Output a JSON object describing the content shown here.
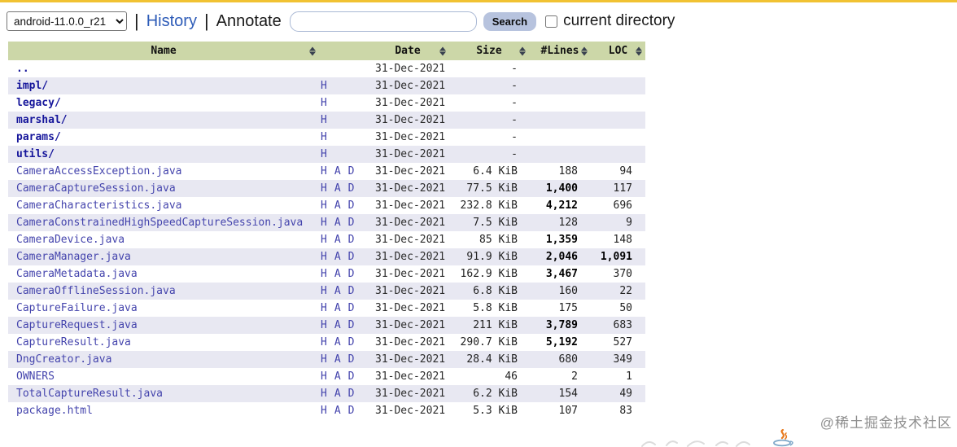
{
  "colors": {
    "top_line": "#f1c232",
    "table_header_bg": "#ccd7a8",
    "row_stripe_bg": "#e8e8f2",
    "link_blue": "#2e5cb8",
    "name_link_dir": "#16169b",
    "name_link_file": "#4545ad",
    "search_button_bg": "#b7c3de"
  },
  "toolbar": {
    "version_select": {
      "value": "android-11.0.0_r21"
    },
    "separator": "|",
    "history_label": "History",
    "annotate_label": "Annotate",
    "search_input": {
      "value": "",
      "placeholder": ""
    },
    "search_button_label": "Search",
    "current_directory": {
      "label": "current directory",
      "checked": false
    }
  },
  "table": {
    "headers": {
      "name_label": "Name",
      "links_label": "",
      "date_label": "Date",
      "size_label": "Size",
      "lines_label": "#Lines",
      "loc_label": "LOC"
    },
    "rows": [
      {
        "name": "..",
        "type": "parent",
        "links": [],
        "date": "31-Dec-2021",
        "size": "-",
        "lines": "",
        "loc": "",
        "lines_bold": false,
        "loc_bold": false
      },
      {
        "name": "impl/",
        "type": "dir",
        "links": [
          "H"
        ],
        "date": "31-Dec-2021",
        "size": "-",
        "lines": "",
        "loc": "",
        "lines_bold": false,
        "loc_bold": false
      },
      {
        "name": "legacy/",
        "type": "dir",
        "links": [
          "H"
        ],
        "date": "31-Dec-2021",
        "size": "-",
        "lines": "",
        "loc": "",
        "lines_bold": false,
        "loc_bold": false
      },
      {
        "name": "marshal/",
        "type": "dir",
        "links": [
          "H"
        ],
        "date": "31-Dec-2021",
        "size": "-",
        "lines": "",
        "loc": "",
        "lines_bold": false,
        "loc_bold": false
      },
      {
        "name": "params/",
        "type": "dir",
        "links": [
          "H"
        ],
        "date": "31-Dec-2021",
        "size": "-",
        "lines": "",
        "loc": "",
        "lines_bold": false,
        "loc_bold": false
      },
      {
        "name": "utils/",
        "type": "dir",
        "links": [
          "H"
        ],
        "date": "31-Dec-2021",
        "size": "-",
        "lines": "",
        "loc": "",
        "lines_bold": false,
        "loc_bold": false
      },
      {
        "name": "CameraAccessException.java",
        "type": "file",
        "links": [
          "H",
          "A",
          "D"
        ],
        "date": "31-Dec-2021",
        "size": "6.4 KiB",
        "lines": "188",
        "loc": "94",
        "lines_bold": false,
        "loc_bold": false
      },
      {
        "name": "CameraCaptureSession.java",
        "type": "file",
        "links": [
          "H",
          "A",
          "D"
        ],
        "date": "31-Dec-2021",
        "size": "77.5 KiB",
        "lines": "1,400",
        "loc": "117",
        "lines_bold": true,
        "loc_bold": false
      },
      {
        "name": "CameraCharacteristics.java",
        "type": "file",
        "links": [
          "H",
          "A",
          "D"
        ],
        "date": "31-Dec-2021",
        "size": "232.8 KiB",
        "lines": "4,212",
        "loc": "696",
        "lines_bold": true,
        "loc_bold": false
      },
      {
        "name": "CameraConstrainedHighSpeedCaptureSession.java",
        "type": "file",
        "links": [
          "H",
          "A",
          "D"
        ],
        "date": "31-Dec-2021",
        "size": "7.5 KiB",
        "lines": "128",
        "loc": "9",
        "lines_bold": false,
        "loc_bold": false
      },
      {
        "name": "CameraDevice.java",
        "type": "file",
        "links": [
          "H",
          "A",
          "D"
        ],
        "date": "31-Dec-2021",
        "size": "85 KiB",
        "lines": "1,359",
        "loc": "148",
        "lines_bold": true,
        "loc_bold": false
      },
      {
        "name": "CameraManager.java",
        "type": "file",
        "links": [
          "H",
          "A",
          "D"
        ],
        "date": "31-Dec-2021",
        "size": "91.9 KiB",
        "lines": "2,046",
        "loc": "1,091",
        "lines_bold": true,
        "loc_bold": true
      },
      {
        "name": "CameraMetadata.java",
        "type": "file",
        "links": [
          "H",
          "A",
          "D"
        ],
        "date": "31-Dec-2021",
        "size": "162.9 KiB",
        "lines": "3,467",
        "loc": "370",
        "lines_bold": true,
        "loc_bold": false
      },
      {
        "name": "CameraOfflineSession.java",
        "type": "file",
        "links": [
          "H",
          "A",
          "D"
        ],
        "date": "31-Dec-2021",
        "size": "6.8 KiB",
        "lines": "160",
        "loc": "22",
        "lines_bold": false,
        "loc_bold": false
      },
      {
        "name": "CaptureFailure.java",
        "type": "file",
        "links": [
          "H",
          "A",
          "D"
        ],
        "date": "31-Dec-2021",
        "size": "5.8 KiB",
        "lines": "175",
        "loc": "50",
        "lines_bold": false,
        "loc_bold": false
      },
      {
        "name": "CaptureRequest.java",
        "type": "file",
        "links": [
          "H",
          "A",
          "D"
        ],
        "date": "31-Dec-2021",
        "size": "211 KiB",
        "lines": "3,789",
        "loc": "683",
        "lines_bold": true,
        "loc_bold": false
      },
      {
        "name": "CaptureResult.java",
        "type": "file",
        "links": [
          "H",
          "A",
          "D"
        ],
        "date": "31-Dec-2021",
        "size": "290.7 KiB",
        "lines": "5,192",
        "loc": "527",
        "lines_bold": true,
        "loc_bold": false
      },
      {
        "name": "DngCreator.java",
        "type": "file",
        "links": [
          "H",
          "A",
          "D"
        ],
        "date": "31-Dec-2021",
        "size": "28.4 KiB",
        "lines": "680",
        "loc": "349",
        "lines_bold": false,
        "loc_bold": false
      },
      {
        "name": "OWNERS",
        "type": "file",
        "links": [
          "H",
          "A",
          "D"
        ],
        "date": "31-Dec-2021",
        "size": "46",
        "lines": "2",
        "loc": "1",
        "lines_bold": false,
        "loc_bold": false
      },
      {
        "name": "TotalCaptureResult.java",
        "type": "file",
        "links": [
          "H",
          "A",
          "D"
        ],
        "date": "31-Dec-2021",
        "size": "6.2 KiB",
        "lines": "154",
        "loc": "49",
        "lines_bold": false,
        "loc_bold": false
      },
      {
        "name": "package.html",
        "type": "file",
        "links": [
          "H",
          "A",
          "D"
        ],
        "date": "31-Dec-2021",
        "size": "5.3 KiB",
        "lines": "107",
        "loc": "83",
        "lines_bold": false,
        "loc_bold": false
      }
    ]
  },
  "footer": {
    "watermark": "@稀土掘金技术社区"
  }
}
